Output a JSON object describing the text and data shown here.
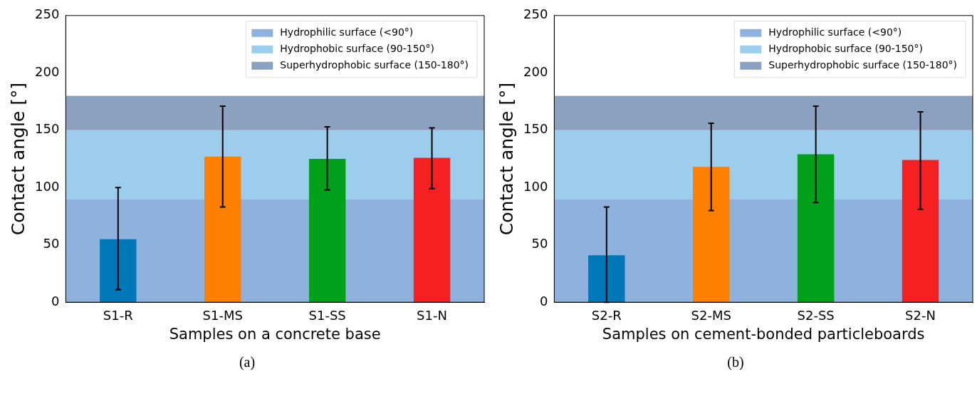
{
  "chart_data": [
    {
      "type": "bar",
      "categories": [
        "S1-R",
        "S1-MS",
        "S1-SS",
        "S1-N"
      ],
      "values": [
        55,
        127,
        125,
        126
      ],
      "colors": [
        "#0077b7",
        "#ff7f00",
        "#00a01a",
        "#f52021"
      ],
      "errors": [
        [
          11,
          100
        ],
        [
          83,
          171
        ],
        [
          98,
          153
        ],
        [
          99,
          152
        ]
      ],
      "xlabel": "Samples on a concrete base",
      "ylabel": "Contact angle [°]",
      "ylim": [
        0,
        250
      ],
      "yticks": [
        0,
        50,
        100,
        150,
        200,
        250
      ],
      "grid": false,
      "legend": "top right",
      "bands": [
        {
          "axis": "y",
          "from": 0,
          "to": 90,
          "label": "Hydrophilic surface (<90°)",
          "color": "#8eb1de"
        },
        {
          "axis": "y",
          "from": 90,
          "to": 150,
          "label": "Hydrophobic surface (90-150°)",
          "color": "#9dcdec"
        },
        {
          "axis": "y",
          "from": 150,
          "to": 180,
          "label": "Superhydrophobic surface (150-180°)",
          "color": "#8ca0c0"
        }
      ],
      "annotations": [
        "(a)"
      ]
    },
    {
      "type": "bar",
      "categories": [
        "S2-R",
        "S2-MS",
        "S2-SS",
        "S2-N"
      ],
      "values": [
        41,
        118,
        129,
        124
      ],
      "colors": [
        "#0077b7",
        "#ff7f00",
        "#00a01a",
        "#f52021"
      ],
      "errors": [
        [
          0,
          83
        ],
        [
          80,
          156
        ],
        [
          87,
          171
        ],
        [
          81,
          166
        ]
      ],
      "xlabel": "Samples on cement-bonded particleboards",
      "ylabel": "Contact angle [°]",
      "ylim": [
        0,
        250
      ],
      "yticks": [
        0,
        50,
        100,
        150,
        200,
        250
      ],
      "grid": false,
      "legend": "top right",
      "bands": [
        {
          "axis": "y",
          "from": 0,
          "to": 90,
          "label": "Hydrophilic surface (<90°)",
          "color": "#8eb1de"
        },
        {
          "axis": "y",
          "from": 90,
          "to": 150,
          "label": "Hydrophobic surface (90-150°)",
          "color": "#9dcdec"
        },
        {
          "axis": "y",
          "from": 150,
          "to": 180,
          "label": "Superhydrophobic surface (150-180°)",
          "color": "#8ca0c0"
        }
      ],
      "annotations": [
        "(b)"
      ]
    }
  ]
}
